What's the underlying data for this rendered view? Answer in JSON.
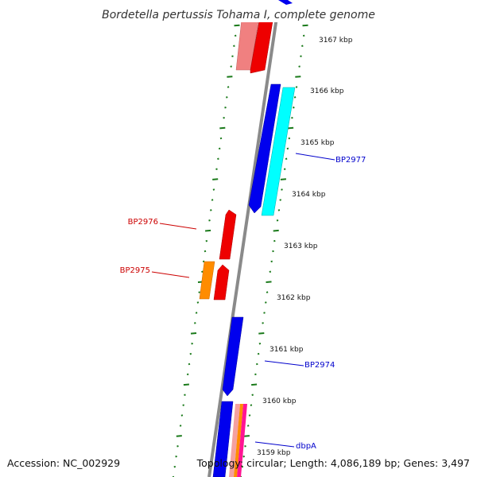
{
  "title": "Bordetella pertussis Tohama I, complete genome",
  "accession": "Accession: NC_002929",
  "summary": "Topology: circular; Length: 4,086,189 bp; Genes: 3,497",
  "colors": {
    "backbone": "#808080",
    "tick": "#1a7a1a",
    "forward_label": "#0000cc",
    "reverse_label": "#cc0000"
  },
  "ticks": [
    {
      "label": "3167 kbp"
    },
    {
      "label": "3166 kbp"
    },
    {
      "label": "3165 kbp"
    },
    {
      "label": "3164 kbp"
    },
    {
      "label": "3163 kbp"
    },
    {
      "label": "3162 kbp"
    },
    {
      "label": "3161 kbp"
    },
    {
      "label": "3160 kbp"
    },
    {
      "label": "3159 kbp"
    }
  ],
  "gene_labels": [
    {
      "text": "BP2977"
    },
    {
      "text": "BP2976"
    },
    {
      "text": "BP2975"
    },
    {
      "text": "BP2974"
    },
    {
      "text": "dbpA"
    }
  ]
}
